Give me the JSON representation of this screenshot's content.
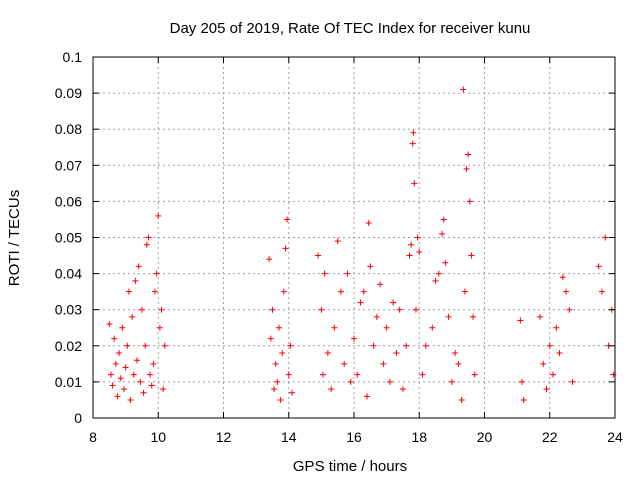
{
  "chart_data": {
    "type": "scatter",
    "title": "Day 205 of 2019, Rate Of TEC Index for receiver kunu",
    "xlabel": "GPS time / hours",
    "ylabel": "ROTI / TECUs",
    "xlim": [
      8,
      24
    ],
    "ylim": [
      0,
      0.1
    ],
    "x_ticks": [
      "8",
      "10",
      "12",
      "14",
      "16",
      "18",
      "20",
      "22",
      "24"
    ],
    "y_ticks": [
      "0",
      "0.01",
      "0.02",
      "0.03",
      "0.04",
      "0.05",
      "0.06",
      "0.07",
      "0.08",
      "0.09",
      "0.1"
    ],
    "grid": true,
    "marker": "plus",
    "color": "#ff0000",
    "points": [
      [
        8.5,
        0.026
      ],
      [
        8.55,
        0.012
      ],
      [
        8.6,
        0.009
      ],
      [
        8.65,
        0.022
      ],
      [
        8.7,
        0.015
      ],
      [
        8.75,
        0.006
      ],
      [
        8.8,
        0.018
      ],
      [
        8.85,
        0.011
      ],
      [
        8.9,
        0.025
      ],
      [
        8.95,
        0.008
      ],
      [
        9.0,
        0.014
      ],
      [
        9.05,
        0.02
      ],
      [
        9.1,
        0.035
      ],
      [
        9.15,
        0.005
      ],
      [
        9.2,
        0.028
      ],
      [
        9.25,
        0.012
      ],
      [
        9.3,
        0.038
      ],
      [
        9.35,
        0.016
      ],
      [
        9.4,
        0.042
      ],
      [
        9.45,
        0.01
      ],
      [
        9.5,
        0.03
      ],
      [
        9.55,
        0.007
      ],
      [
        9.6,
        0.02
      ],
      [
        9.65,
        0.048
      ],
      [
        9.7,
        0.05
      ],
      [
        9.75,
        0.012
      ],
      [
        9.8,
        0.009
      ],
      [
        9.85,
        0.015
      ],
      [
        9.9,
        0.035
      ],
      [
        9.95,
        0.04
      ],
      [
        10.0,
        0.056
      ],
      [
        10.05,
        0.025
      ],
      [
        10.1,
        0.03
      ],
      [
        10.15,
        0.008
      ],
      [
        10.2,
        0.02
      ],
      [
        13.4,
        0.044
      ],
      [
        13.45,
        0.022
      ],
      [
        13.5,
        0.03
      ],
      [
        13.55,
        0.008
      ],
      [
        13.6,
        0.015
      ],
      [
        13.65,
        0.01
      ],
      [
        13.7,
        0.025
      ],
      [
        13.75,
        0.005
      ],
      [
        13.8,
        0.018
      ],
      [
        13.85,
        0.035
      ],
      [
        13.9,
        0.047
      ],
      [
        13.95,
        0.055
      ],
      [
        14.0,
        0.012
      ],
      [
        14.05,
        0.02
      ],
      [
        14.1,
        0.007
      ],
      [
        14.9,
        0.045
      ],
      [
        15.0,
        0.03
      ],
      [
        15.05,
        0.012
      ],
      [
        15.1,
        0.04
      ],
      [
        15.2,
        0.018
      ],
      [
        15.3,
        0.008
      ],
      [
        15.4,
        0.025
      ],
      [
        15.5,
        0.049
      ],
      [
        15.6,
        0.035
      ],
      [
        15.7,
        0.015
      ],
      [
        15.8,
        0.04
      ],
      [
        15.9,
        0.01
      ],
      [
        16.0,
        0.022
      ],
      [
        16.1,
        0.012
      ],
      [
        16.2,
        0.032
      ],
      [
        16.3,
        0.035
      ],
      [
        16.4,
        0.006
      ],
      [
        16.45,
        0.054
      ],
      [
        16.5,
        0.042
      ],
      [
        16.6,
        0.02
      ],
      [
        16.7,
        0.028
      ],
      [
        16.8,
        0.037
      ],
      [
        16.9,
        0.015
      ],
      [
        17.0,
        0.025
      ],
      [
        17.1,
        0.01
      ],
      [
        17.2,
        0.032
      ],
      [
        17.3,
        0.018
      ],
      [
        17.4,
        0.03
      ],
      [
        17.5,
        0.008
      ],
      [
        17.6,
        0.02
      ],
      [
        17.7,
        0.045
      ],
      [
        17.75,
        0.048
      ],
      [
        17.8,
        0.076
      ],
      [
        17.82,
        0.079
      ],
      [
        17.85,
        0.065
      ],
      [
        17.9,
        0.03
      ],
      [
        17.95,
        0.05
      ],
      [
        18.0,
        0.046
      ],
      [
        18.1,
        0.012
      ],
      [
        18.2,
        0.02
      ],
      [
        18.4,
        0.025
      ],
      [
        18.5,
        0.038
      ],
      [
        18.6,
        0.04
      ],
      [
        18.7,
        0.051
      ],
      [
        18.75,
        0.055
      ],
      [
        18.8,
        0.043
      ],
      [
        18.9,
        0.028
      ],
      [
        19.0,
        0.01
      ],
      [
        19.1,
        0.018
      ],
      [
        19.2,
        0.015
      ],
      [
        19.3,
        0.005
      ],
      [
        19.35,
        0.091
      ],
      [
        19.4,
        0.035
      ],
      [
        19.45,
        0.069
      ],
      [
        19.5,
        0.073
      ],
      [
        19.55,
        0.06
      ],
      [
        19.6,
        0.045
      ],
      [
        19.65,
        0.028
      ],
      [
        19.7,
        0.012
      ],
      [
        21.1,
        0.027
      ],
      [
        21.15,
        0.01
      ],
      [
        21.2,
        0.005
      ],
      [
        21.7,
        0.028
      ],
      [
        21.8,
        0.015
      ],
      [
        21.9,
        0.008
      ],
      [
        22.0,
        0.02
      ],
      [
        22.1,
        0.012
      ],
      [
        22.2,
        0.025
      ],
      [
        22.3,
        0.018
      ],
      [
        22.4,
        0.039
      ],
      [
        22.5,
        0.035
      ],
      [
        22.6,
        0.03
      ],
      [
        22.7,
        0.01
      ],
      [
        23.5,
        0.042
      ],
      [
        23.6,
        0.035
      ],
      [
        23.7,
        0.05
      ],
      [
        23.8,
        0.02
      ],
      [
        23.9,
        0.03
      ],
      [
        23.95,
        0.012
      ]
    ]
  }
}
